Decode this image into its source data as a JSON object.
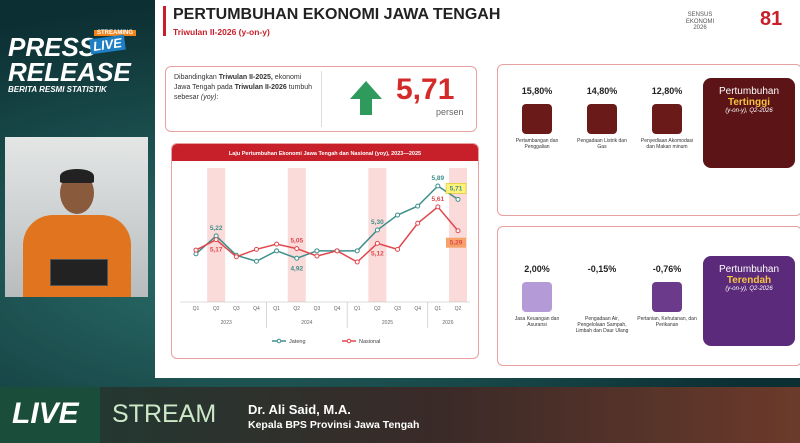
{
  "overlay": {
    "press": "PRESS",
    "live_badge": "LIVE",
    "streaming": "STREAMING",
    "release": "RELEASE",
    "subtitle": "BERITA RESMI STATISTIK"
  },
  "slide": {
    "title": "PERTUMBUHAN EKONOMI JAWA TENGAH",
    "subtitle": "Triwulan II-2026 (y-on-y)",
    "logo_text": "SENSUS EKONOMI 2026",
    "logo_number": "81",
    "summary": {
      "text_1": "Dibandingkan ",
      "bold_1": "Triwulan II-2025,",
      "text_2": "ekonomi Jawa Tengah pada",
      "bold_2": "Triwulan II-2026",
      "text_3": "tumbuh sebesar ",
      "italic": "(yoy)",
      "text_4": ":",
      "value": "5,71",
      "unit": "persen"
    },
    "highest": {
      "heading": "Pertumbuhan",
      "emphasis": "Tertinggi",
      "period": "(y-on-y), Q2-2026",
      "sectors": [
        {
          "value": "15,80%",
          "label": "Pertambangan dan Penggalian"
        },
        {
          "value": "14,80%",
          "label": "Pengadaan Listrik dan Gas"
        },
        {
          "value": "12,80%",
          "label": "Penyediaan Akomodasi dan Makan minum"
        }
      ]
    },
    "lowest": {
      "heading": "Pertumbuhan",
      "emphasis": "Terendah",
      "period": "(y-on-y), Q2-2026",
      "sectors": [
        {
          "value": "2,00%",
          "label": "Jasa Keuangan dan Asuransi"
        },
        {
          "value": "-0,15%",
          "label": "Pengadaan Air, Pengelolaan Sampah, Limbah dan Daur Ulang"
        },
        {
          "value": "-0,76%",
          "label": "Pertanian, Kehutanan, dan Perikanan"
        }
      ]
    }
  },
  "chart_data": {
    "type": "line",
    "title": "Laju Pertumbuhan Ekonomi Jawa Tengah dan Nasional (yoy), 2023—2025",
    "categories": [
      "Q1",
      "Q2",
      "Q3",
      "Q4",
      "Q1",
      "Q2",
      "Q3",
      "Q4",
      "Q1",
      "Q2",
      "Q3",
      "Q4",
      "Q1",
      "Q2"
    ],
    "groups": [
      "2023",
      "2024",
      "2025",
      "2026"
    ],
    "series": [
      {
        "name": "Jateng",
        "color": "#3f8f8c",
        "values": [
          4.98,
          5.22,
          4.96,
          4.88,
          5.02,
          4.92,
          5.02,
          5.02,
          5.02,
          5.3,
          5.5,
          5.62,
          5.89,
          5.71
        ],
        "value_labels": [
          null,
          "5,22",
          null,
          null,
          null,
          "4,92",
          null,
          null,
          null,
          "5,30",
          null,
          null,
          "5,89",
          "5,71"
        ]
      },
      {
        "name": "Nasional",
        "color": "#e0474c",
        "values": [
          5.03,
          5.17,
          4.94,
          5.04,
          5.11,
          5.05,
          4.95,
          5.02,
          4.87,
          5.12,
          5.04,
          5.39,
          5.61,
          5.29
        ],
        "value_labels": [
          null,
          "5,17",
          null,
          null,
          null,
          "5,05",
          null,
          null,
          null,
          "5,12",
          null,
          null,
          "5,61",
          "5,29"
        ]
      }
    ]
  },
  "lower_third": {
    "live": "LIVE",
    "stream": "STREAM",
    "name": "Dr. Ali Said, M.A.",
    "role": "Kepala BPS Provinsi Jawa Tengah"
  }
}
